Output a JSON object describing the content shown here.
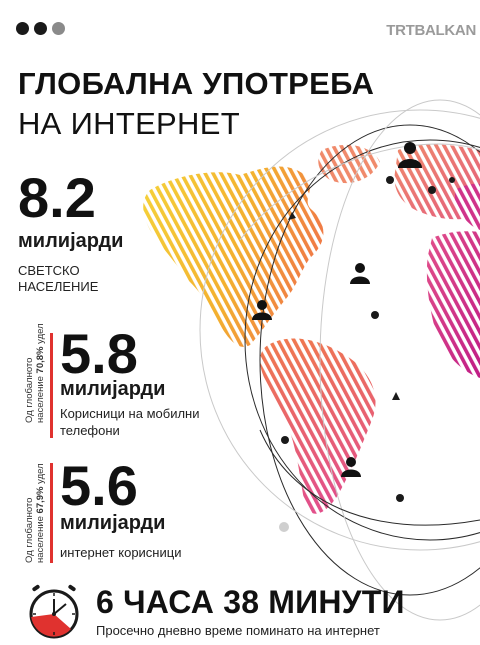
{
  "header": {
    "dots": [
      "#1a1a1a",
      "#1a1a1a",
      "#8a8a8a"
    ],
    "brand": "TRTBALKAN"
  },
  "title": {
    "line1": "ГЛОБАЛНА УПОТРЕБА",
    "line2": "НА ИНТЕРНЕТ"
  },
  "stats": [
    {
      "value": "8.2",
      "unit": "милијарди",
      "description": "СВЕТСКО НАСЕЛЕНИЕ"
    },
    {
      "value": "5.8",
      "unit": "милијарди",
      "description": "Корисници на мобилни телефони",
      "share_line1": "Од глобалното",
      "share_line2_prefix": "население ",
      "share_percent": "70,8%",
      "share_suffix": " удел"
    },
    {
      "value": "5.6",
      "unit": "милијарди",
      "description": "интернет корисници",
      "share_line1": "Од глобалното",
      "share_line2_prefix": "население ",
      "share_percent": "67,9%",
      "share_suffix": " удел"
    }
  ],
  "footer": {
    "time": "6 ЧАСА 38 МИНУТИ",
    "description": "Просечно дневно време поминато на интернет",
    "clock_icon": "clock-icon"
  },
  "colors": {
    "accent": "#e0322f",
    "yellow": "#f2c12e",
    "orange": "#f08a4b",
    "pink": "#e2508a",
    "magenta": "#c8208a"
  }
}
